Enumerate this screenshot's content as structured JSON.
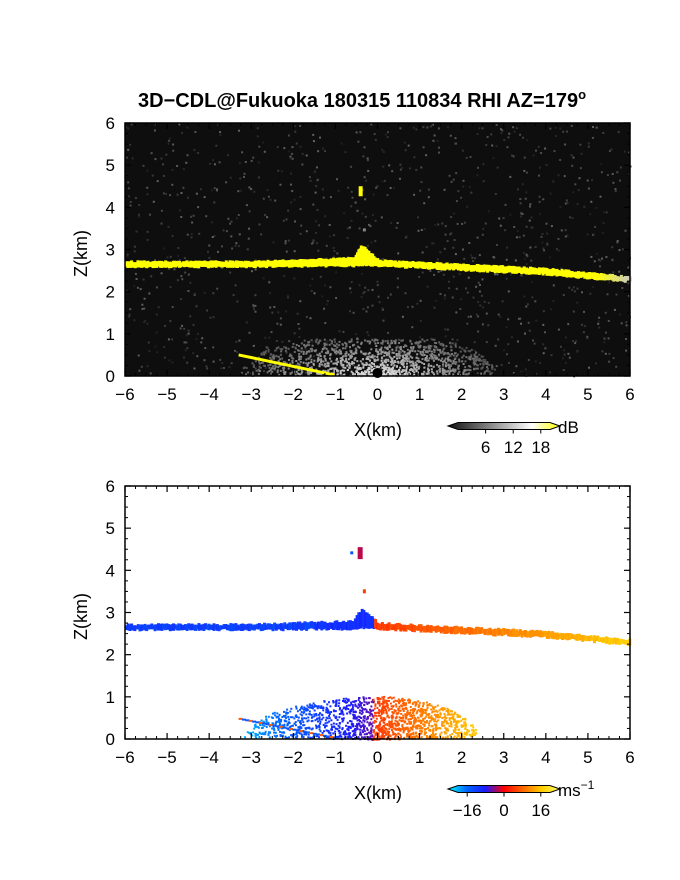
{
  "title": {
    "text": "3D−CDL@Fukuoka 180315 110834 RHI AZ=179",
    "sup": "o"
  },
  "chart_data": [
    {
      "type": "heatmap",
      "xlabel": "X(km)",
      "ylabel": "Z(km)",
      "xlim": [
        -6,
        6
      ],
      "ylim": [
        0,
        6
      ],
      "x_ticks": [
        "−6",
        "−5",
        "−4",
        "−3",
        "−2",
        "−1",
        "0",
        "1",
        "2",
        "3",
        "4",
        "5",
        "6"
      ],
      "y_ticks": [
        "0",
        "1",
        "2",
        "3",
        "4",
        "5",
        "6"
      ],
      "colorbar": {
        "unit": "dB",
        "unit_sup": "",
        "ticks": [
          "6",
          "12",
          "18"
        ],
        "range": [
          0,
          20
        ],
        "colors": [
          "#101010",
          "#606060",
          "#b0b0b0",
          "#ffffff",
          "#ffff00"
        ]
      },
      "features": [
        {
          "name": "cloud-layer",
          "x": [
            -6,
            -3,
            -0.6,
            -0.4,
            0,
            2,
            4,
            6
          ],
          "z_top": [
            2.72,
            2.72,
            2.8,
            3.1,
            2.75,
            2.65,
            2.55,
            2.35
          ],
          "z_bottom": [
            2.58,
            2.58,
            2.6,
            2.62,
            2.6,
            2.5,
            2.4,
            2.22
          ],
          "value": 20
        },
        {
          "name": "surface-echo",
          "x": [
            -3.3,
            -1
          ],
          "z": [
            0.5,
            0.02
          ],
          "value": 20
        },
        {
          "name": "boundary-layer",
          "x_range": [
            -3,
            2
          ],
          "z_top": 0.9,
          "value": 10
        }
      ]
    },
    {
      "type": "heatmap",
      "xlabel": "X(km)",
      "ylabel": "Z(km)",
      "xlim": [
        -6,
        6
      ],
      "ylim": [
        0,
        6
      ],
      "x_ticks": [
        "−6",
        "−5",
        "−4",
        "−3",
        "−2",
        "−1",
        "0",
        "1",
        "2",
        "3",
        "4",
        "5",
        "6"
      ],
      "y_ticks": [
        "0",
        "1",
        "2",
        "3",
        "4",
        "5",
        "6"
      ],
      "colorbar": {
        "unit": "ms",
        "unit_sup": "−1",
        "ticks": [
          "−16",
          "0",
          "16"
        ],
        "range": [
          -20,
          20
        ],
        "colors": [
          "#00ffff",
          "#0066ff",
          "#1a1aff",
          "#ff0000",
          "#ff6600",
          "#ffcc00",
          "#ffff66"
        ]
      },
      "features": [
        {
          "name": "cloud-layer-approaching",
          "x_range": [
            -6,
            -0.1
          ],
          "value": -10
        },
        {
          "name": "cloud-layer-receding",
          "x_range": [
            -0.1,
            6
          ],
          "value": 8
        },
        {
          "name": "boundary-layer-negative",
          "x_range": [
            -3,
            -0.1
          ],
          "value": -14
        },
        {
          "name": "boundary-layer-positive",
          "x_range": [
            -0.1,
            2
          ],
          "value": 14
        }
      ]
    }
  ]
}
